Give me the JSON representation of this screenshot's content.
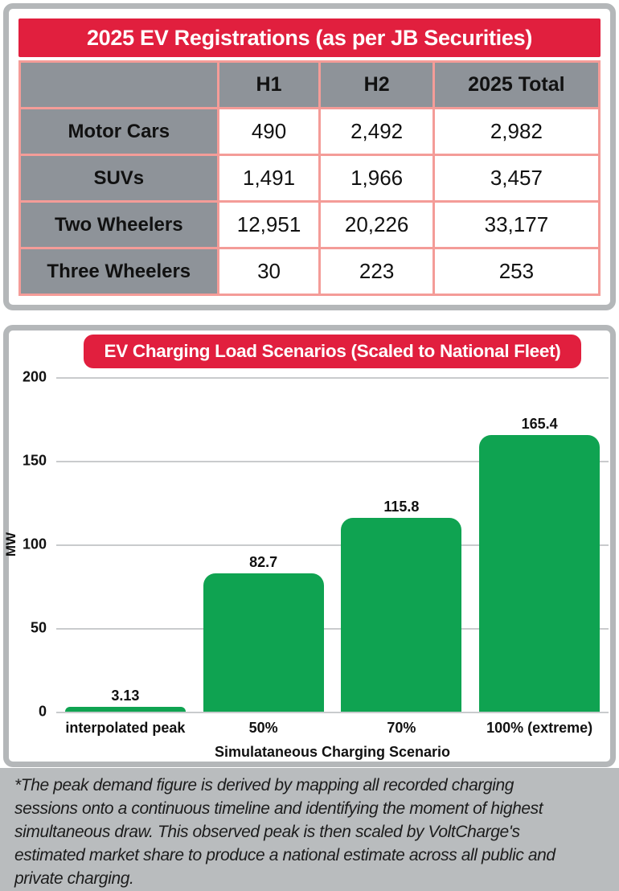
{
  "colors": {
    "accent_red": "#e11f3e",
    "bar_green": "#0fa351",
    "table_header_gray": "#8e9399",
    "table_border_pink": "#f49c98",
    "panel_frame_gray": "#b4b7b9",
    "footnote_bg_gray": "#b9bcbe"
  },
  "chart_data": [
    {
      "type": "table",
      "title": "2025 EV Registrations (as per JB Securities)",
      "columns": [
        "",
        "H1",
        "H2",
        "2025 Total"
      ],
      "rows": [
        [
          "Motor Cars",
          "490",
          "2,492",
          "2,982"
        ],
        [
          "SUVs",
          "1,491",
          "1,966",
          "3,457"
        ],
        [
          "Two Wheelers",
          "12,951",
          "20,226",
          "33,177"
        ],
        [
          "Three Wheelers",
          "30",
          "223",
          "253"
        ]
      ]
    },
    {
      "type": "bar",
      "title": "EV Charging Load Scenarios (Scaled to National Fleet)",
      "categories": [
        "interpolated peak",
        "50%",
        "70%",
        "100% (extreme)"
      ],
      "values": [
        3.13,
        82.7,
        115.8,
        165.4
      ],
      "bar_labels": [
        "3.13",
        "82.7",
        "115.8",
        "165.4"
      ],
      "xlabel": "Simulataneous Charging Scenario",
      "ylabel": "MW",
      "ylim": [
        0,
        200
      ],
      "yticks": [
        0,
        50,
        100,
        150,
        200
      ],
      "ytick_labels_top_down": [
        "200",
        "150",
        "100",
        "50",
        "0"
      ],
      "grid": true,
      "legend": "none",
      "bar_color": "#0fa351"
    }
  ],
  "footnote": {
    "lines": [
      "*The peak demand figure is derived by mapping all recorded charging",
      "sessions onto a continuous timeline and identifying the moment of highest",
      "simultaneous draw. This observed peak is then scaled by VoltCharge's",
      "estimated market share to produce a national estimate across all public and",
      "private charging."
    ]
  }
}
